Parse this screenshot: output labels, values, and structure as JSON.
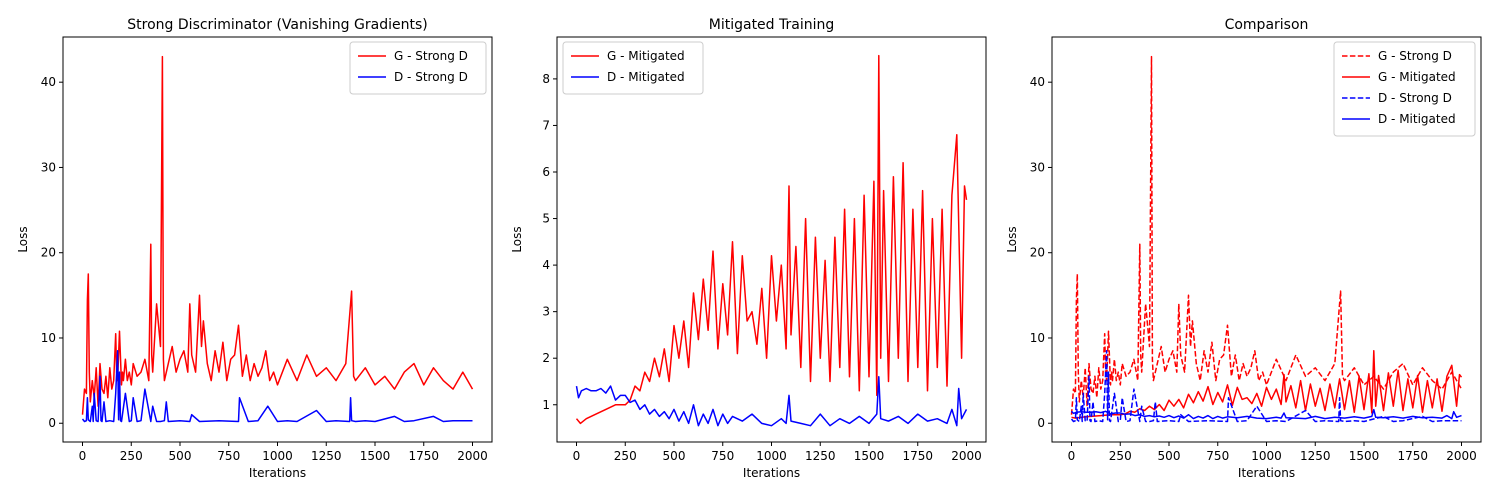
{
  "colors": {
    "generator": "#ff0000",
    "discriminator": "#0000ff"
  },
  "chart_data": [
    {
      "type": "line",
      "title": "Strong Discriminator (Vanishing Gradients)",
      "xlabel": "Iterations",
      "ylabel": "Loss",
      "xlim": [
        -100,
        2100
      ],
      "ylim": [
        -2.2,
        45.3
      ],
      "xticks": [
        0,
        250,
        500,
        750,
        1000,
        1250,
        1500,
        1750,
        2000
      ],
      "yticks": [
        0,
        10,
        20,
        30,
        40
      ],
      "grid": false,
      "legend_position": "top-right",
      "series": [
        {
          "name": "G - Strong D",
          "color": "#ff0000",
          "style": "solid",
          "x": [
            0,
            10,
            20,
            25,
            30,
            35,
            40,
            50,
            60,
            70,
            80,
            90,
            100,
            110,
            120,
            130,
            140,
            150,
            160,
            170,
            175,
            180,
            190,
            200,
            205,
            210,
            220,
            230,
            240,
            250,
            260,
            280,
            300,
            320,
            340,
            350,
            355,
            360,
            380,
            400,
            410,
            415,
            420,
            440,
            460,
            480,
            500,
            520,
            540,
            550,
            560,
            580,
            600,
            610,
            620,
            640,
            660,
            680,
            700,
            720,
            740,
            760,
            780,
            800,
            820,
            840,
            860,
            880,
            900,
            920,
            940,
            960,
            980,
            1000,
            1050,
            1100,
            1150,
            1200,
            1250,
            1300,
            1350,
            1380,
            1390,
            1400,
            1450,
            1500,
            1550,
            1600,
            1650,
            1700,
            1750,
            1800,
            1850,
            1900,
            1950,
            2000
          ],
          "y": [
            1.0,
            4.0,
            3.5,
            14.5,
            17.5,
            6.0,
            2.5,
            5.0,
            3.0,
            6.5,
            2.0,
            7.0,
            4.0,
            3.5,
            5.5,
            3.0,
            6.5,
            4.0,
            5.0,
            10.5,
            6.0,
            5.0,
            10.8,
            4.5,
            6.0,
            5.0,
            7.5,
            5.0,
            6.0,
            4.5,
            7.0,
            5.5,
            6.0,
            7.5,
            5.0,
            21.0,
            8.0,
            6.0,
            14.0,
            9.0,
            43.0,
            7.5,
            5.0,
            7.0,
            9.0,
            6.0,
            7.5,
            8.5,
            6.0,
            14.0,
            8.0,
            6.0,
            15.0,
            9.0,
            12.0,
            7.0,
            5.0,
            8.5,
            6.0,
            9.5,
            5.0,
            7.5,
            8.0,
            11.5,
            5.5,
            8.0,
            5.0,
            7.0,
            5.5,
            6.5,
            8.5,
            5.0,
            6.0,
            4.5,
            7.5,
            5.0,
            8.0,
            5.5,
            6.5,
            5.0,
            7.0,
            15.5,
            5.5,
            5.0,
            6.5,
            4.5,
            5.5,
            4.0,
            6.0,
            7.0,
            4.5,
            6.5,
            5.0,
            4.0,
            6.0,
            4.0
          ]
        },
        {
          "name": "D - Strong D",
          "color": "#0000ff",
          "style": "solid",
          "x": [
            0,
            10,
            20,
            25,
            30,
            40,
            50,
            55,
            60,
            70,
            80,
            90,
            95,
            100,
            110,
            120,
            140,
            160,
            170,
            180,
            185,
            190,
            195,
            200,
            220,
            240,
            250,
            260,
            280,
            300,
            320,
            350,
            360,
            380,
            400,
            420,
            430,
            440,
            500,
            550,
            560,
            600,
            700,
            800,
            805,
            850,
            900,
            950,
            1000,
            1050,
            1100,
            1200,
            1250,
            1300,
            1370,
            1375,
            1380,
            1400,
            1450,
            1500,
            1600,
            1650,
            1700,
            1800,
            1850,
            1900,
            2000
          ],
          "y": [
            0.5,
            0.2,
            0.3,
            3.0,
            0.4,
            0.2,
            2.0,
            0.2,
            3.5,
            0.3,
            0.2,
            5.5,
            0.3,
            0.2,
            2.5,
            0.2,
            0.3,
            0.2,
            3.5,
            8.5,
            0.4,
            6.0,
            0.3,
            0.2,
            3.5,
            0.2,
            0.3,
            3.0,
            0.2,
            0.3,
            4.0,
            0.2,
            2.0,
            0.2,
            0.2,
            0.3,
            2.5,
            0.2,
            0.3,
            0.2,
            1.0,
            0.2,
            0.3,
            0.2,
            3.0,
            0.2,
            0.3,
            2.0,
            0.2,
            0.3,
            0.2,
            1.5,
            0.2,
            0.3,
            0.2,
            3.0,
            0.3,
            0.2,
            0.3,
            0.2,
            0.8,
            0.2,
            0.3,
            0.8,
            0.2,
            0.3,
            0.3
          ]
        }
      ]
    },
    {
      "type": "line",
      "title": "Mitigated Training",
      "xlabel": "Iterations",
      "ylabel": "Loss",
      "xlim": [
        -100,
        2100
      ],
      "ylim": [
        0.2,
        8.9
      ],
      "xticks": [
        0,
        250,
        500,
        750,
        1000,
        1250,
        1500,
        1750,
        2000
      ],
      "yticks": [
        1,
        2,
        3,
        4,
        5,
        6,
        7,
        8
      ],
      "grid": false,
      "legend_position": "top-left",
      "series": [
        {
          "name": "G - Mitigated",
          "color": "#ff0000",
          "style": "solid",
          "x": [
            0,
            20,
            50,
            100,
            150,
            200,
            250,
            275,
            300,
            325,
            350,
            375,
            400,
            425,
            450,
            475,
            500,
            525,
            550,
            575,
            600,
            625,
            650,
            675,
            700,
            725,
            750,
            775,
            800,
            825,
            850,
            875,
            900,
            925,
            950,
            975,
            1000,
            1025,
            1050,
            1075,
            1090,
            1100,
            1125,
            1150,
            1175,
            1200,
            1225,
            1250,
            1275,
            1300,
            1325,
            1350,
            1375,
            1400,
            1425,
            1450,
            1475,
            1500,
            1525,
            1540,
            1550,
            1560,
            1575,
            1600,
            1625,
            1650,
            1675,
            1700,
            1725,
            1750,
            1775,
            1800,
            1825,
            1850,
            1875,
            1900,
            1925,
            1950,
            1975,
            1990,
            2000
          ],
          "y": [
            0.7,
            0.6,
            0.7,
            0.8,
            0.9,
            1.0,
            1.0,
            1.1,
            1.4,
            1.3,
            1.7,
            1.5,
            2.0,
            1.6,
            2.2,
            1.5,
            2.7,
            2.0,
            2.8,
            1.8,
            3.4,
            2.4,
            3.7,
            2.6,
            4.3,
            2.2,
            3.6,
            2.5,
            4.5,
            2.1,
            4.2,
            2.8,
            3.0,
            2.3,
            3.5,
            2.0,
            4.2,
            2.8,
            4.0,
            2.2,
            5.7,
            2.5,
            4.4,
            1.8,
            5.0,
            1.5,
            4.6,
            2.0,
            4.1,
            1.5,
            4.6,
            1.8,
            5.2,
            1.6,
            5.0,
            1.3,
            5.5,
            1.6,
            5.8,
            1.2,
            8.5,
            2.0,
            5.6,
            1.5,
            5.9,
            2.0,
            6.2,
            1.5,
            5.2,
            1.8,
            5.6,
            1.3,
            5.0,
            1.8,
            5.2,
            1.4,
            5.5,
            6.8,
            2.0,
            5.7,
            5.4
          ]
        },
        {
          "name": "D - Mitigated",
          "color": "#0000ff",
          "style": "solid",
          "x": [
            0,
            10,
            25,
            50,
            75,
            100,
            125,
            150,
            175,
            200,
            225,
            250,
            275,
            300,
            325,
            350,
            375,
            400,
            425,
            450,
            475,
            500,
            525,
            550,
            575,
            600,
            625,
            650,
            675,
            700,
            725,
            750,
            775,
            800,
            850,
            900,
            950,
            1000,
            1050,
            1075,
            1090,
            1100,
            1150,
            1200,
            1250,
            1300,
            1350,
            1400,
            1450,
            1500,
            1540,
            1550,
            1560,
            1600,
            1650,
            1700,
            1750,
            1800,
            1850,
            1900,
            1925,
            1950,
            1960,
            1975,
            2000
          ],
          "y": [
            1.4,
            1.15,
            1.3,
            1.35,
            1.3,
            1.3,
            1.35,
            1.25,
            1.4,
            1.1,
            1.2,
            1.2,
            1.05,
            1.1,
            0.9,
            1.0,
            0.8,
            0.9,
            0.75,
            0.85,
            0.7,
            0.9,
            0.65,
            0.85,
            0.6,
            1.0,
            0.55,
            0.8,
            0.6,
            0.9,
            0.55,
            0.8,
            0.6,
            0.75,
            0.65,
            0.8,
            0.6,
            0.55,
            0.7,
            0.6,
            1.2,
            0.65,
            0.6,
            0.55,
            0.8,
            0.55,
            0.7,
            0.6,
            0.75,
            0.6,
            0.8,
            1.6,
            0.7,
            0.65,
            0.75,
            0.6,
            0.8,
            0.65,
            0.7,
            0.6,
            0.9,
            0.55,
            1.35,
            0.7,
            0.9
          ]
        }
      ]
    },
    {
      "type": "line",
      "title": "Comparison",
      "xlabel": "Iterations",
      "ylabel": "Loss",
      "xlim": [
        -100,
        2100
      ],
      "ylim": [
        -2.2,
        45.3
      ],
      "xticks": [
        0,
        250,
        500,
        750,
        1000,
        1250,
        1500,
        1750,
        2000
      ],
      "yticks": [
        0,
        10,
        20,
        30,
        40
      ],
      "grid": false,
      "legend_position": "top-right",
      "series": [
        {
          "name": "G - Strong D",
          "color": "#ff0000",
          "style": "dashed",
          "ref": [
            0,
            0
          ]
        },
        {
          "name": "G - Mitigated",
          "color": "#ff0000",
          "style": "solid",
          "ref": [
            1,
            0
          ]
        },
        {
          "name": "D - Strong D",
          "color": "#0000ff",
          "style": "dashed",
          "ref": [
            0,
            1
          ]
        },
        {
          "name": "D - Mitigated",
          "color": "#0000ff",
          "style": "solid",
          "ref": [
            1,
            1
          ]
        }
      ]
    }
  ]
}
